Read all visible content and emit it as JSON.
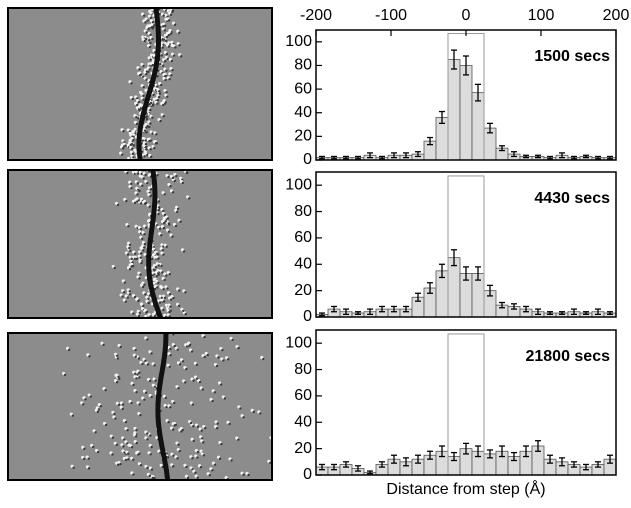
{
  "chart_data": [
    {
      "type": "histogram",
      "annotation": "1500 secs",
      "bins": [
        -200,
        -184,
        -168,
        -152,
        -136,
        -120,
        -104,
        -88,
        -72,
        -56,
        -40,
        -24,
        -8,
        8,
        24,
        40,
        56,
        72,
        88,
        104,
        120,
        136,
        152,
        168,
        184,
        200
      ],
      "values": [
        2,
        2,
        2,
        2,
        4,
        2,
        4,
        4,
        5,
        16,
        36,
        85,
        80,
        57,
        27,
        10,
        5,
        3,
        3,
        2,
        4,
        2,
        3,
        2,
        2
      ],
      "errors": [
        1,
        1,
        1,
        1,
        2,
        1,
        2,
        2,
        2,
        3,
        5,
        8,
        8,
        7,
        4,
        2,
        2,
        1,
        1,
        1,
        2,
        1,
        1,
        1,
        1
      ],
      "xlim": [
        -200,
        200
      ],
      "xticks": [
        -200,
        -100,
        0,
        100,
        200
      ],
      "ylim": [
        0,
        110
      ],
      "yticks": [
        0,
        20,
        40,
        60,
        80,
        100
      ],
      "window_x": [
        -24,
        24
      ],
      "window_top": 107,
      "color": "#dcdcdc"
    },
    {
      "type": "histogram",
      "annotation": "4430 secs",
      "bins": [
        -200,
        -184,
        -168,
        -152,
        -136,
        -120,
        -104,
        -88,
        -72,
        -56,
        -40,
        -24,
        -8,
        8,
        24,
        40,
        56,
        72,
        88,
        104,
        120,
        136,
        152,
        168,
        184,
        200
      ],
      "values": [
        2,
        6,
        4,
        3,
        4,
        6,
        6,
        6,
        15,
        22,
        35,
        45,
        33,
        33,
        20,
        9,
        8,
        6,
        4,
        3,
        3,
        4,
        3,
        4,
        3
      ],
      "errors": [
        1,
        2,
        2,
        1,
        2,
        2,
        2,
        2,
        3,
        4,
        5,
        6,
        5,
        5,
        4,
        2,
        2,
        2,
        2,
        1,
        1,
        2,
        1,
        2,
        1
      ],
      "xlim": [
        -200,
        200
      ],
      "ylim": [
        0,
        110
      ],
      "yticks": [
        0,
        20,
        40,
        60,
        80,
        100
      ],
      "window_x": [
        -24,
        24
      ],
      "window_top": 107,
      "color": "#dcdcdc"
    },
    {
      "type": "histogram",
      "annotation": "21800 secs",
      "xlabel": "Distance from step (Å)",
      "bins": [
        -200,
        -184,
        -168,
        -152,
        -136,
        -120,
        -104,
        -88,
        -72,
        -56,
        -40,
        -24,
        -8,
        8,
        24,
        40,
        56,
        72,
        88,
        104,
        120,
        136,
        152,
        168,
        184,
        200
      ],
      "values": [
        6,
        6,
        8,
        5,
        2,
        8,
        12,
        10,
        12,
        15,
        18,
        14,
        20,
        18,
        16,
        18,
        14,
        18,
        22,
        12,
        10,
        8,
        6,
        8,
        12
      ],
      "errors": [
        2,
        2,
        2,
        2,
        1,
        2,
        3,
        3,
        3,
        3,
        4,
        3,
        4,
        4,
        3,
        4,
        3,
        4,
        4,
        3,
        3,
        2,
        2,
        2,
        3
      ],
      "xlim": [
        -200,
        200
      ],
      "ylim": [
        0,
        110
      ],
      "yticks": [
        0,
        20,
        40,
        60,
        80,
        100
      ],
      "window_x": [
        -24,
        24
      ],
      "window_top": 107,
      "color": "#dcdcdc"
    }
  ]
}
